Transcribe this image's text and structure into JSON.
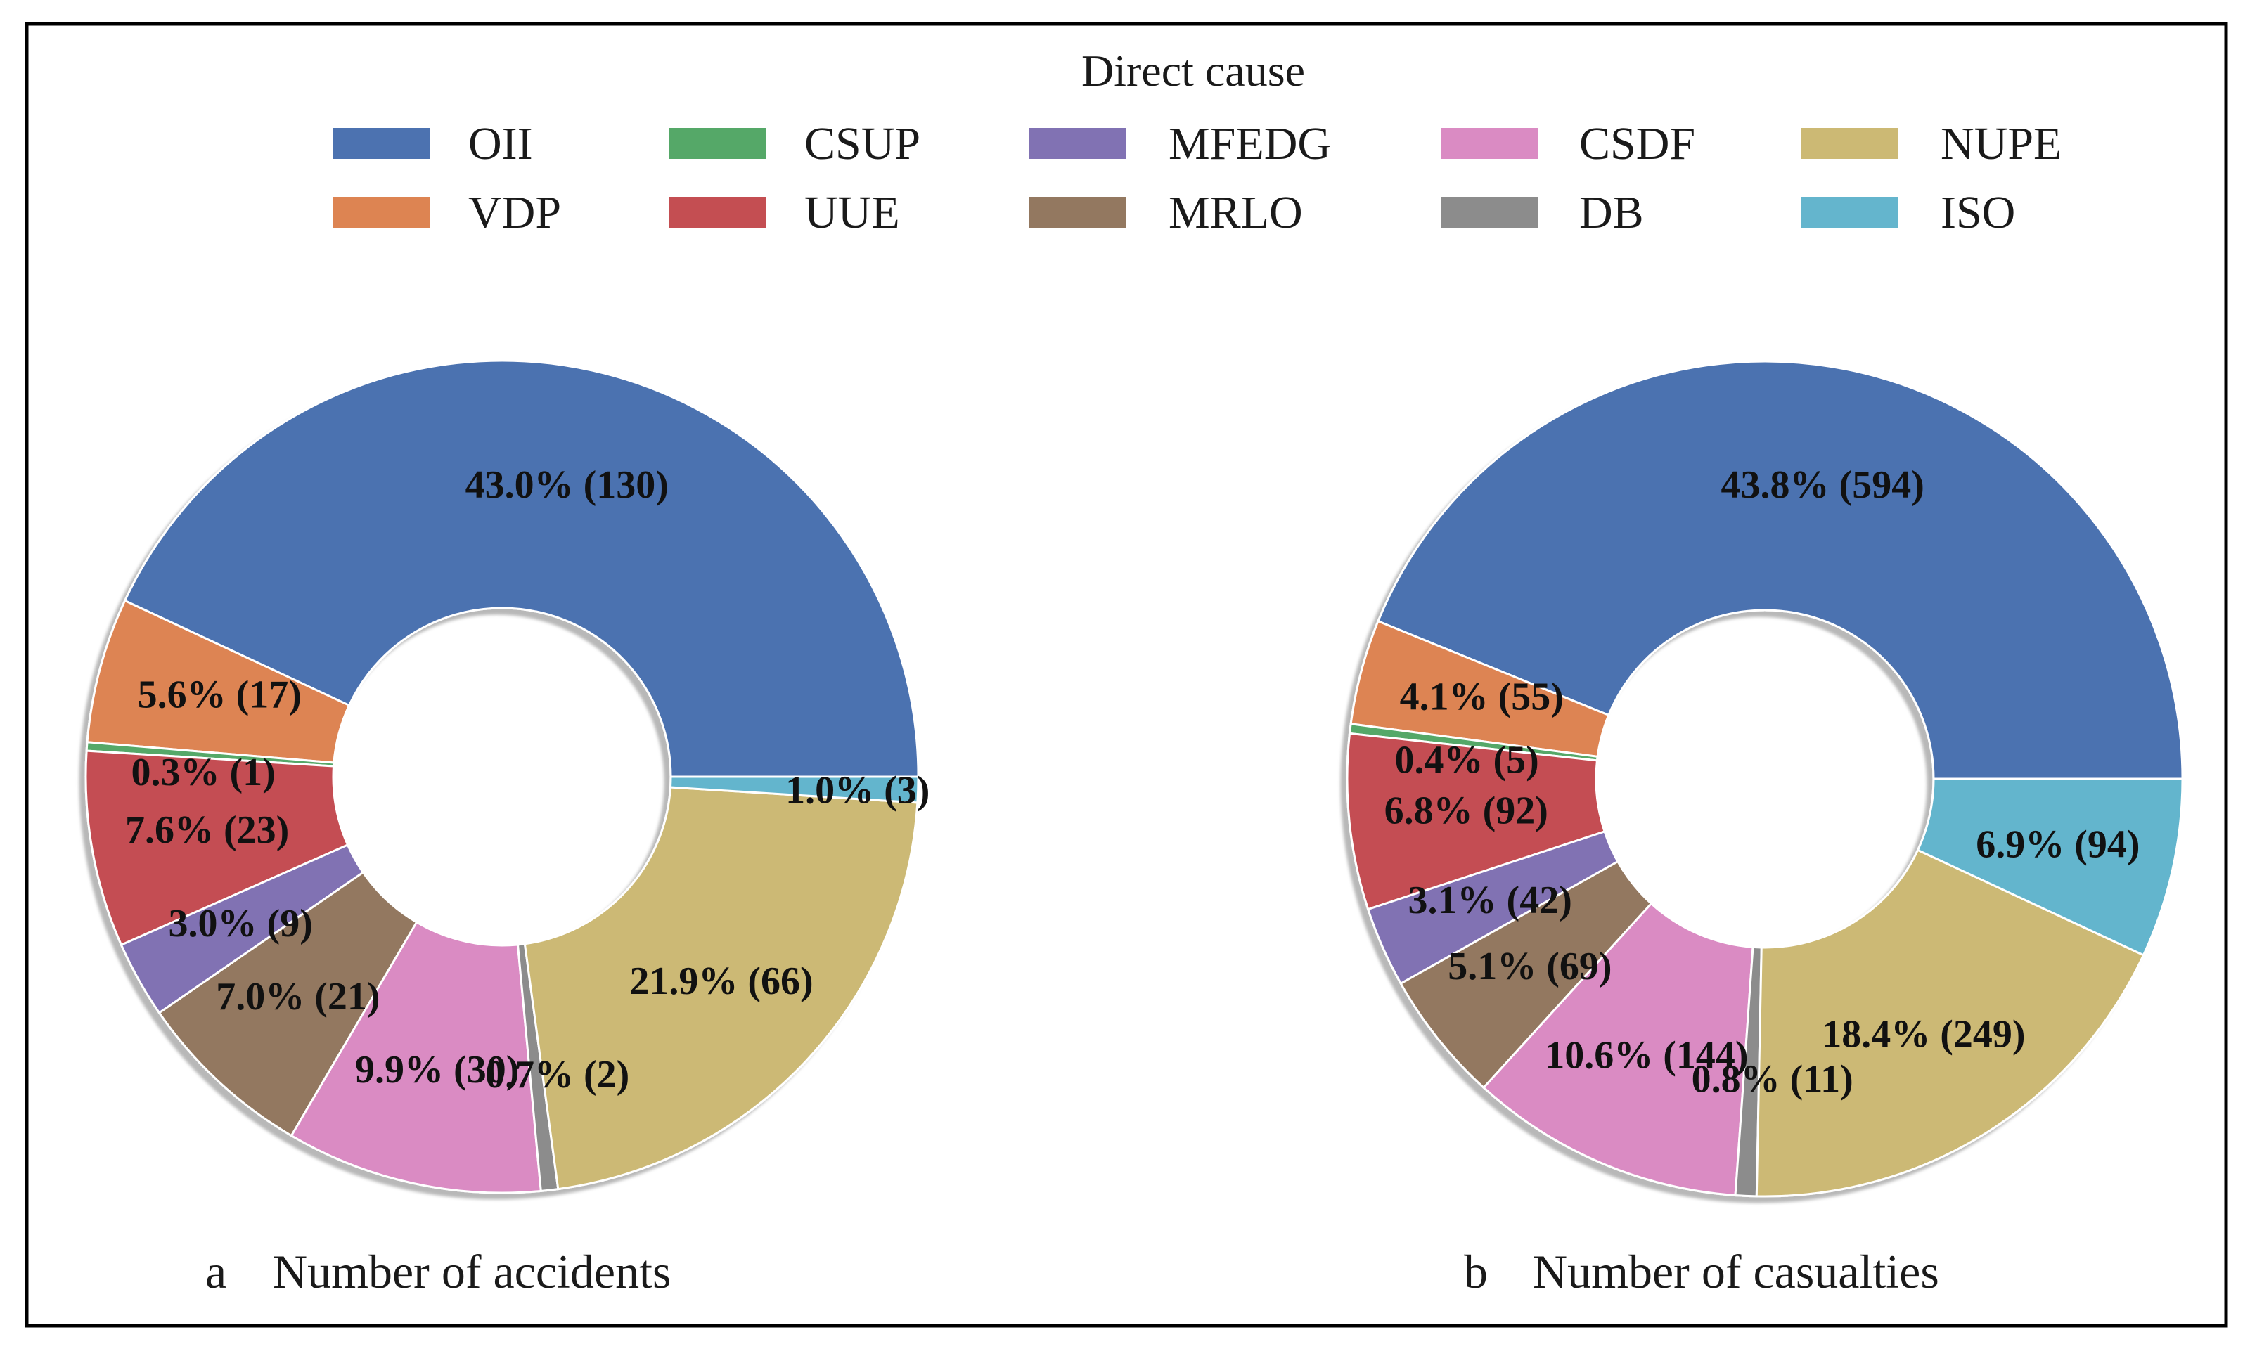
{
  "legend": {
    "title": "Direct cause",
    "items": [
      {
        "key": "OII",
        "label": "OII",
        "color": "#4c72b0"
      },
      {
        "key": "VDP",
        "label": "VDP",
        "color": "#dd8452"
      },
      {
        "key": "CSUP",
        "label": "CSUP",
        "color": "#55a868"
      },
      {
        "key": "UUE",
        "label": "UUE",
        "color": "#c44e52"
      },
      {
        "key": "MFEDG",
        "label": "MFEDG",
        "color": "#8172b3"
      },
      {
        "key": "MRLO",
        "label": "MRLO",
        "color": "#937860"
      },
      {
        "key": "CSDF",
        "label": "CSDF",
        "color": "#da8bc3"
      },
      {
        "key": "DB",
        "label": "DB",
        "color": "#8c8c8c"
      },
      {
        "key": "NUPE",
        "label": "NUPE",
        "color": "#ccb974"
      },
      {
        "key": "ISO",
        "label": "ISO",
        "color": "#64b5cd"
      }
    ]
  },
  "chart_data": [
    {
      "type": "pie",
      "subtype": "donut",
      "letter": "a",
      "title": "Number of accidents",
      "start_angle": 0,
      "direction": "counterclockwise",
      "slices": [
        {
          "key": "OII",
          "value": 130,
          "label": "43.0% (130)"
        },
        {
          "key": "VDP",
          "value": 17,
          "label": "5.6% (17)"
        },
        {
          "key": "CSUP",
          "value": 1,
          "label": "0.3% (1)"
        },
        {
          "key": "UUE",
          "value": 23,
          "label": "7.6% (23)"
        },
        {
          "key": "MFEDG",
          "value": 9,
          "label": "3.0% (9)"
        },
        {
          "key": "MRLO",
          "value": 21,
          "label": "7.0% (21)"
        },
        {
          "key": "CSDF",
          "value": 30,
          "label": "9.9% (30)"
        },
        {
          "key": "DB",
          "value": 2,
          "label": "0.7% (2)"
        },
        {
          "key": "NUPE",
          "value": 66,
          "label": "21.9% (66)"
        },
        {
          "key": "ISO",
          "value": 3,
          "label": "1.0% (3)"
        }
      ]
    },
    {
      "type": "pie",
      "subtype": "donut",
      "letter": "b",
      "title": "Number of casualties",
      "start_angle": 0,
      "direction": "counterclockwise",
      "slices": [
        {
          "key": "OII",
          "value": 594,
          "label": "43.8% (594)"
        },
        {
          "key": "VDP",
          "value": 55,
          "label": "4.1% (55)"
        },
        {
          "key": "CSUP",
          "value": 5,
          "label": "0.4% (5)"
        },
        {
          "key": "UUE",
          "value": 92,
          "label": "6.8% (92)"
        },
        {
          "key": "MFEDG",
          "value": 42,
          "label": "3.1% (42)"
        },
        {
          "key": "MRLO",
          "value": 69,
          "label": "5.1% (69)"
        },
        {
          "key": "CSDF",
          "value": 144,
          "label": "10.6% (144)"
        },
        {
          "key": "DB",
          "value": 11,
          "label": "0.8% (11)"
        },
        {
          "key": "NUPE",
          "value": 249,
          "label": "18.4% (249)"
        },
        {
          "key": "ISO",
          "value": 94,
          "label": "6.9% (94)"
        }
      ]
    }
  ]
}
